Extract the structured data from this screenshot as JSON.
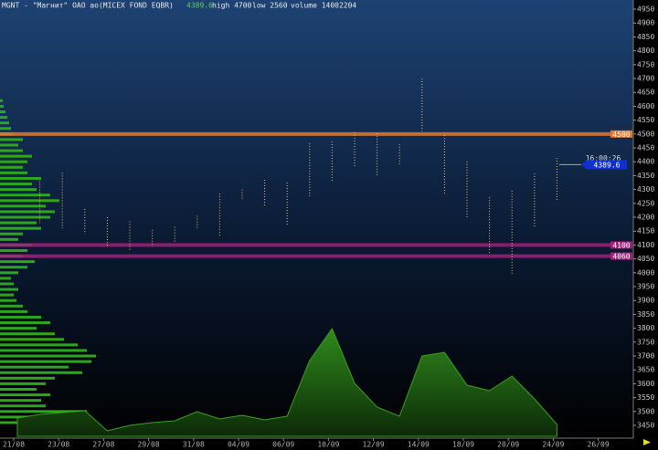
{
  "chart_data": {
    "type": "candle",
    "title": "MGNT - \"Магнит\" ОАО ао(MICEX FOND EQBR)",
    "last": "4389.6",
    "high_label": "high 4700",
    "low_label": "low 2560",
    "volume_label": "volume 14002204",
    "time": "16:00:26",
    "categories": [
      "21/08",
      null,
      "23/08",
      null,
      "27/08",
      null,
      "29/08",
      null,
      "31/08",
      null,
      "04/09",
      null,
      "06/09",
      null,
      "10/09",
      null,
      "12/09",
      null,
      "14/09",
      null,
      "18/09",
      null,
      "20/09",
      null,
      "24/09",
      null,
      "26/09"
    ],
    "high": [
      null,
      4330,
      4360,
      4230,
      4200,
      4185,
      4155,
      4165,
      4205,
      4285,
      4300,
      4335,
      4325,
      4467,
      4473,
      4506,
      4503,
      4463,
      4700,
      4496,
      4401,
      4272,
      4296,
      4358,
      4414,
      null,
      null
    ],
    "low": [
      null,
      4180,
      4160,
      4140,
      4095,
      4080,
      4095,
      4110,
      4160,
      4130,
      4260,
      4243,
      4167,
      4276,
      4328,
      4384,
      4348,
      4388,
      4510,
      4286,
      4194,
      4069,
      3990,
      4161,
      4259,
      null,
      null
    ],
    "candle_color": "#e8c070",
    "volume": [
      200000,
      240000,
      260000,
      280000,
      60000,
      120000,
      150000,
      170000,
      270000,
      190000,
      230000,
      180000,
      220000,
      830000,
      1180000,
      580000,
      320000,
      220000,
      880000,
      920000,
      560000,
      500000,
      660000,
      410000,
      130000,
      null,
      null
    ],
    "volume_ylim": [
      0,
      1500000
    ],
    "volume_color": "#2f8a1c",
    "profile_prices": [
      3460,
      3480,
      3500,
      3520,
      3540,
      3560,
      3580,
      3600,
      3620,
      3640,
      3660,
      3680,
      3700,
      3720,
      3740,
      3760,
      3780,
      3800,
      3820,
      3840,
      3860,
      3880,
      3900,
      3920,
      3940,
      3960,
      3980,
      4000,
      4020,
      4040,
      4060,
      4080,
      4100,
      4120,
      4140,
      4160,
      4180,
      4200,
      4220,
      4240,
      4260,
      4280,
      4300,
      4320,
      4340,
      4360,
      4380,
      4400,
      4420,
      4440,
      4460,
      4480,
      4500,
      4520,
      4540,
      4560,
      4580,
      4600,
      4620
    ],
    "profile_volumes": [
      175000,
      137500,
      237500,
      125000,
      112500,
      137500,
      100000,
      125000,
      150000,
      225000,
      187500,
      250000,
      262500,
      237500,
      212500,
      175000,
      150000,
      100000,
      137500,
      112500,
      75000,
      62500,
      45000,
      37500,
      50000,
      37500,
      30000,
      50000,
      75000,
      95000,
      62500,
      75000,
      87500,
      50000,
      62500,
      112500,
      100000,
      137500,
      150000,
      125000,
      162500,
      137500,
      100000,
      87500,
      112500,
      75000,
      62500,
      75000,
      87500,
      62500,
      50000,
      62500,
      37500,
      30000,
      25000,
      20000,
      15000,
      10000,
      7500
    ],
    "profile_xlim": [
      0,
      400000
    ],
    "profile_color": "#2fa51c",
    "levels": [
      {
        "value": 4500,
        "color": "#e8782a"
      },
      {
        "value": 4100,
        "color": "#a0207a"
      },
      {
        "value": 4060,
        "color": "#a0207a"
      }
    ],
    "ylim": [
      3404,
      4983
    ],
    "yticks": [
      3450,
      3500,
      3550,
      3600,
      3650,
      3700,
      3750,
      3800,
      3850,
      3900,
      3950,
      4000,
      4050,
      4100,
      4150,
      4200,
      4250,
      4300,
      4350,
      4400,
      4450,
      4500,
      4550,
      4600,
      4650,
      4700,
      4750,
      4800,
      4850,
      4900,
      4950
    ]
  }
}
